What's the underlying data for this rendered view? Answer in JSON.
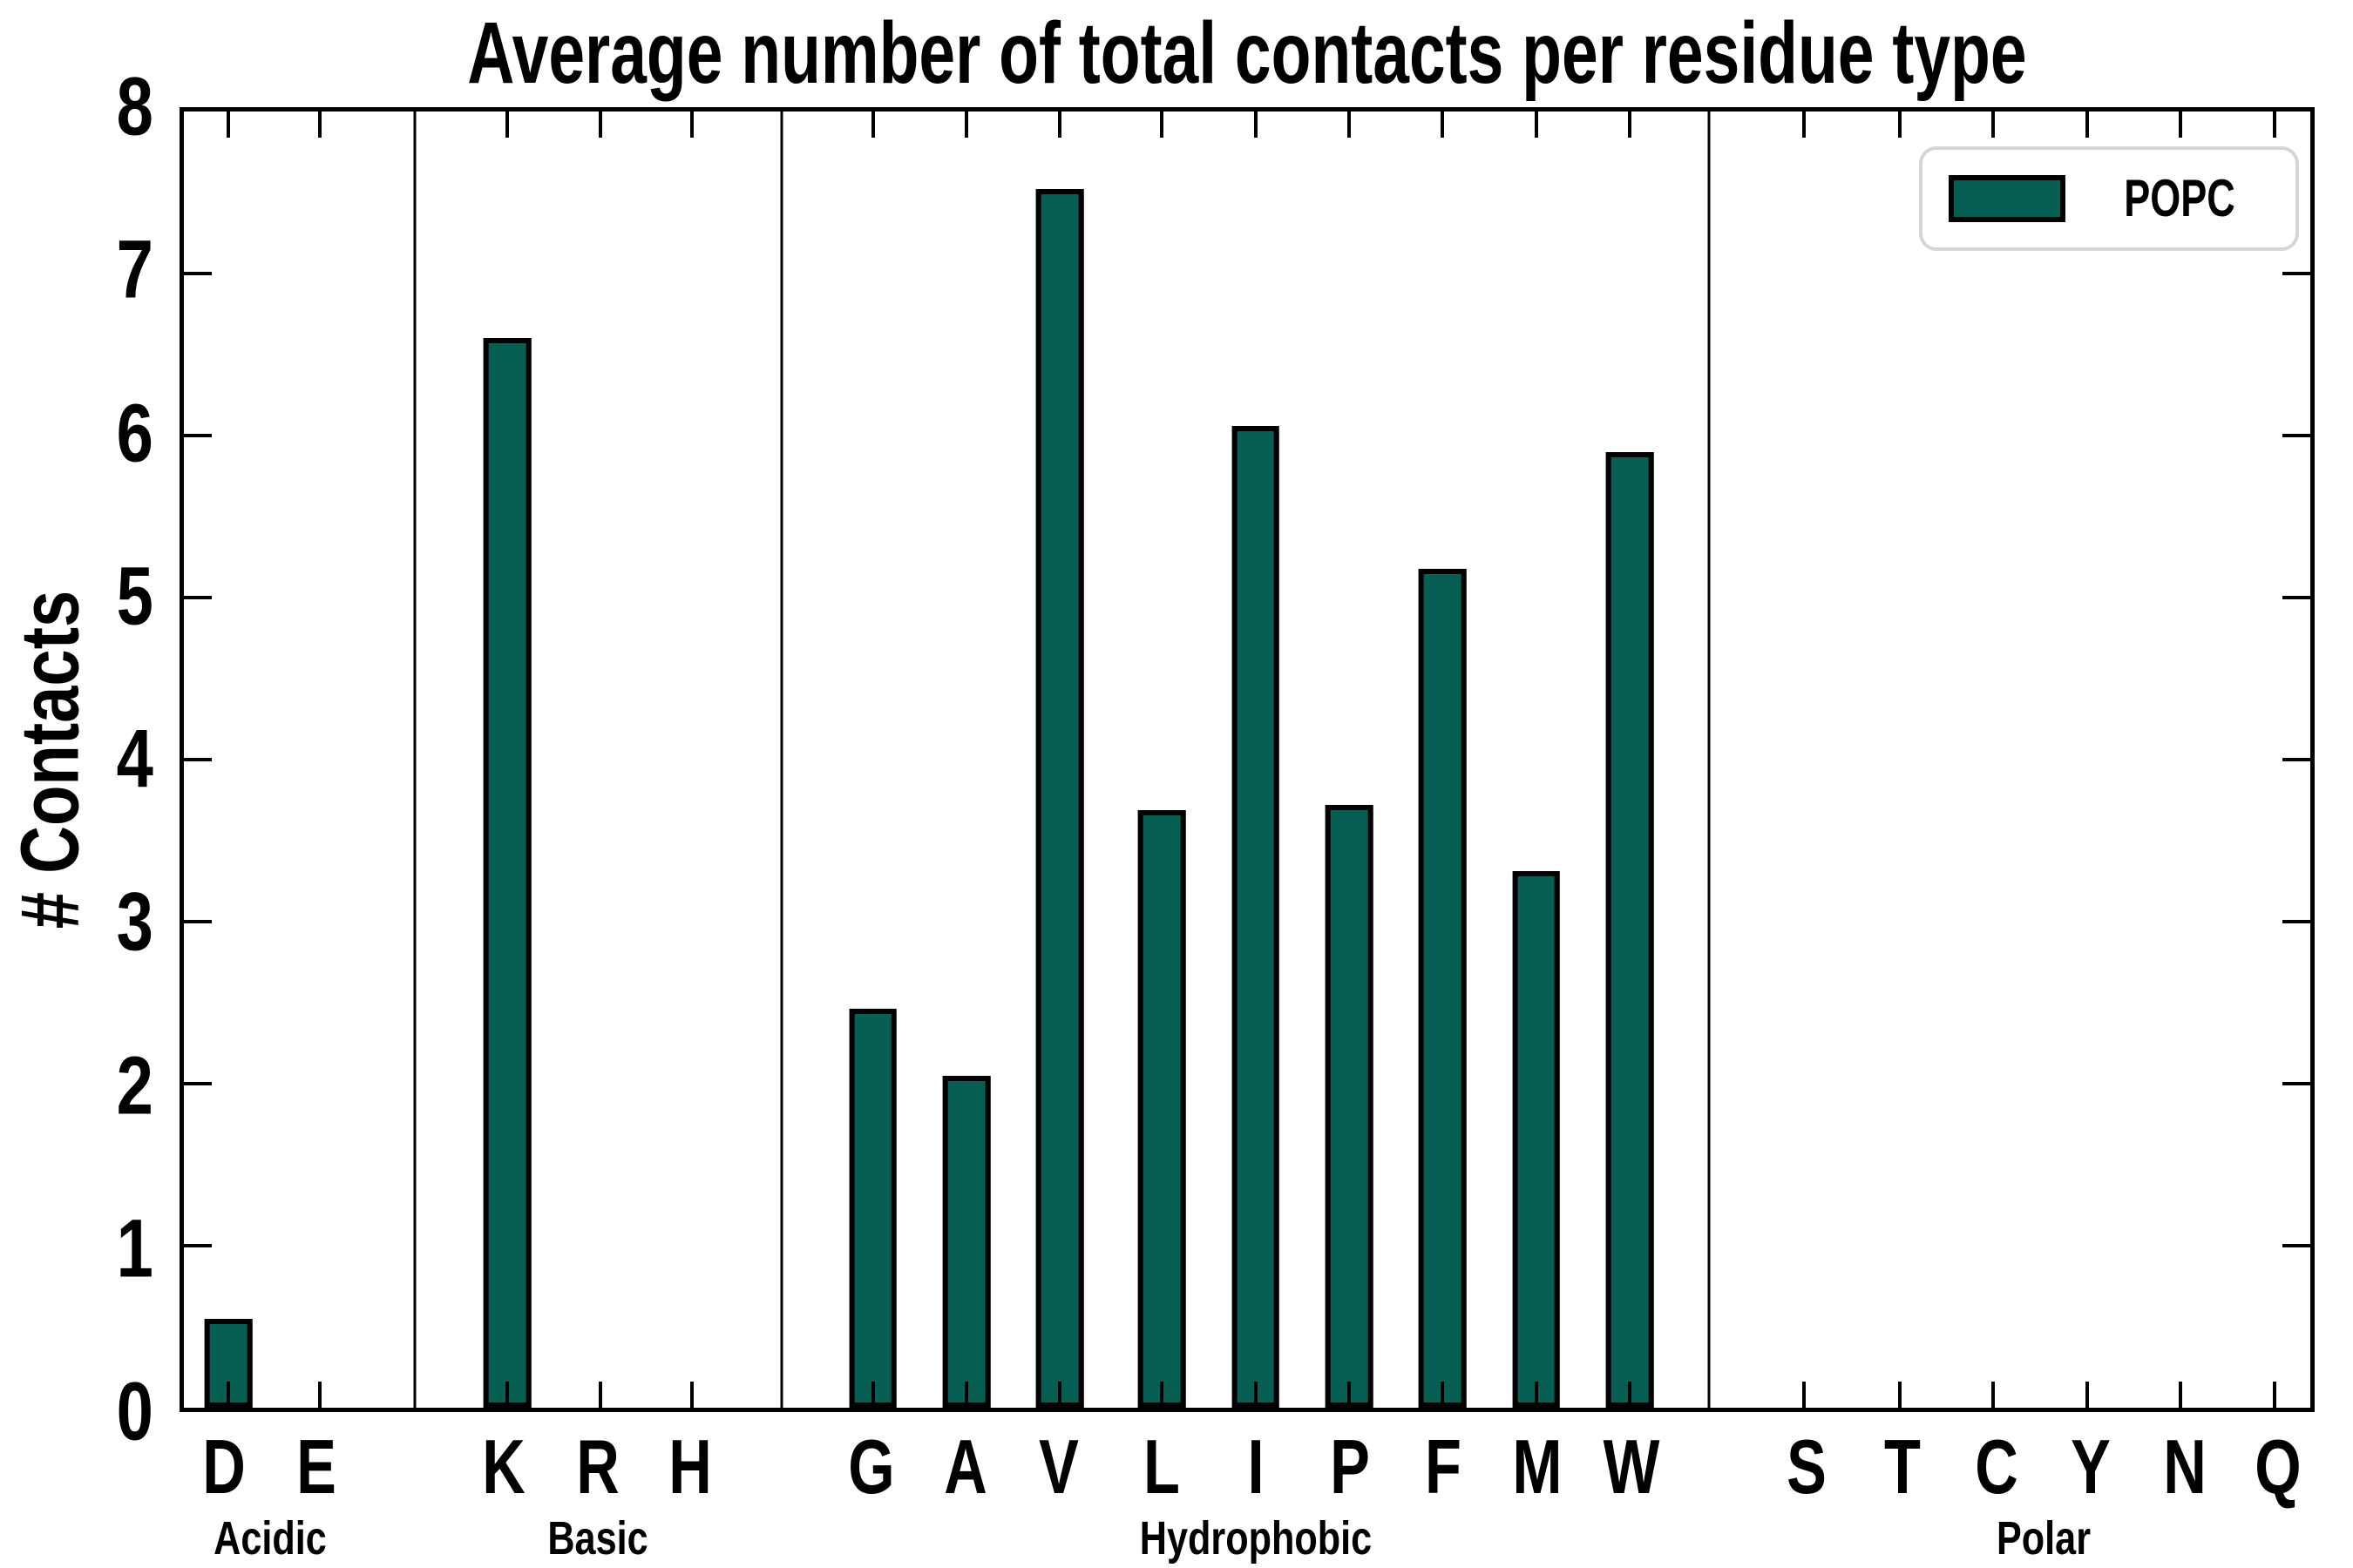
{
  "title": "Average number of total contacts per residue type",
  "ylabel": "# Contacts",
  "legend": {
    "label": "POPC"
  },
  "colors": {
    "bar_fill": "#075e52",
    "bar_edge": "#000000",
    "axis": "#000000",
    "legend_border": "#d5d5d5",
    "background": "#ffffff"
  },
  "chart_data": {
    "type": "bar",
    "title": "Average number of total contacts per residue type",
    "xlabel": "",
    "ylabel": "# Contacts",
    "ylim": [
      0,
      8
    ],
    "yticks": [
      0,
      1,
      2,
      3,
      4,
      5,
      6,
      7,
      8
    ],
    "grid": false,
    "legend_entries": [
      "POPC"
    ],
    "legend_position": "upper right",
    "bar_color": "#075e52",
    "bar_edge_color": "#000000",
    "categories": [
      "D",
      "E",
      "K",
      "R",
      "H",
      "G",
      "A",
      "V",
      "L",
      "I",
      "P",
      "F",
      "M",
      "W",
      "S",
      "T",
      "C",
      "Y",
      "N",
      "Q"
    ],
    "values": [
      0.55,
      0.0,
      6.6,
      0.0,
      0.0,
      2.46,
      2.05,
      7.52,
      3.69,
      6.06,
      3.72,
      5.18,
      3.31,
      5.9,
      0.0,
      0.0,
      0.0,
      0.0,
      0.0,
      0.0
    ],
    "groups": [
      {
        "name": "Acidic",
        "label_center_pct": 4.25,
        "residues": [
          {
            "label": "D",
            "value": 0.55,
            "center_pct": 2.1
          },
          {
            "label": "E",
            "value": 0.0,
            "center_pct": 6.4
          }
        ]
      },
      {
        "name": "Basic",
        "label_center_pct": 19.6,
        "residues": [
          {
            "label": "K",
            "value": 6.6,
            "center_pct": 15.2
          },
          {
            "label": "R",
            "value": 0.0,
            "center_pct": 19.6
          },
          {
            "label": "H",
            "value": 0.0,
            "center_pct": 23.9
          }
        ]
      },
      {
        "name": "Hydrophobic",
        "label_center_pct": 50.4,
        "residues": [
          {
            "label": "G",
            "value": 2.46,
            "center_pct": 32.4
          },
          {
            "label": "A",
            "value": 2.05,
            "center_pct": 36.8
          },
          {
            "label": "V",
            "value": 7.52,
            "center_pct": 41.2
          },
          {
            "label": "L",
            "value": 3.69,
            "center_pct": 46.0
          },
          {
            "label": "I",
            "value": 6.06,
            "center_pct": 50.4
          },
          {
            "label": "P",
            "value": 3.72,
            "center_pct": 54.8
          },
          {
            "label": "F",
            "value": 5.18,
            "center_pct": 59.2
          },
          {
            "label": "M",
            "value": 3.31,
            "center_pct": 63.6
          },
          {
            "label": "W",
            "value": 5.9,
            "center_pct": 68.0
          }
        ]
      },
      {
        "name": "Polar",
        "label_center_pct": 87.3,
        "residues": [
          {
            "label": "S",
            "value": 0.0,
            "center_pct": 76.2
          },
          {
            "label": "T",
            "value": 0.0,
            "center_pct": 80.7
          },
          {
            "label": "C",
            "value": 0.0,
            "center_pct": 85.1
          },
          {
            "label": "Y",
            "value": 0.0,
            "center_pct": 89.5
          },
          {
            "label": "N",
            "value": 0.0,
            "center_pct": 93.9
          },
          {
            "label": "Q",
            "value": 0.0,
            "center_pct": 98.3
          }
        ]
      }
    ],
    "dividers_pct": [
      10.86,
      28.12,
      71.71
    ]
  }
}
